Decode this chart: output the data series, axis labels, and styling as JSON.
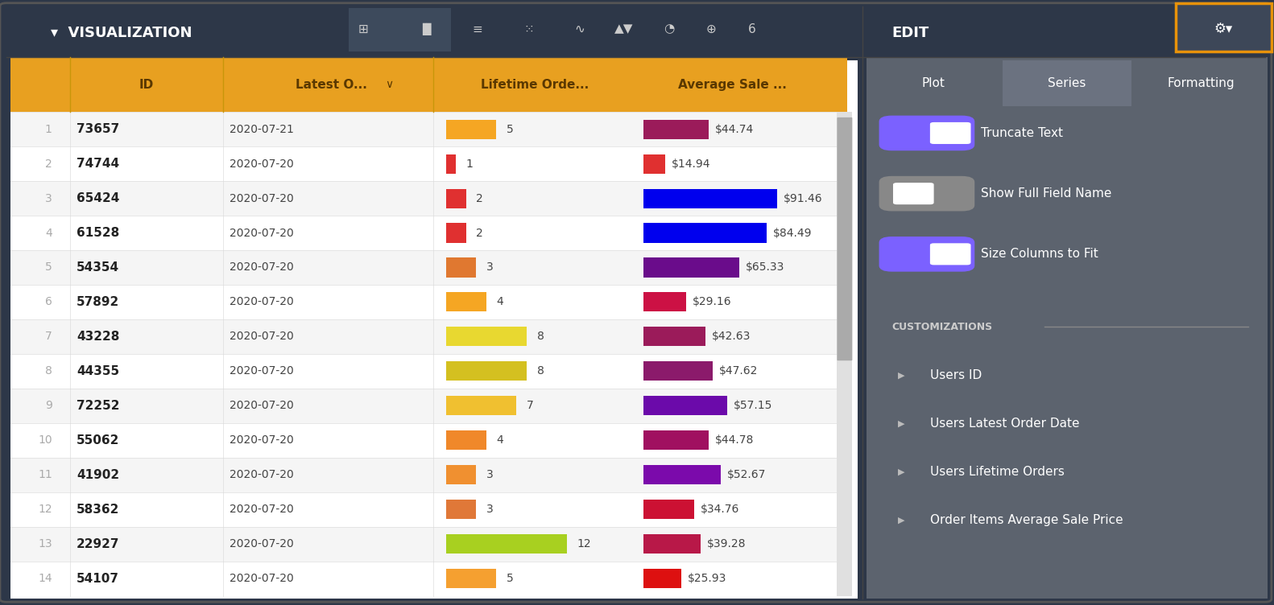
{
  "rows": [
    {
      "num": 1,
      "id": "73657",
      "date": "2020-07-21",
      "lifetime": 5,
      "lifetime_color": "#F5A623",
      "avg_sale": 44.74,
      "avg_color": "#9B1B5A"
    },
    {
      "num": 2,
      "id": "74744",
      "date": "2020-07-20",
      "lifetime": 1,
      "lifetime_color": "#E03030",
      "avg_sale": 14.94,
      "avg_color": "#E03030"
    },
    {
      "num": 3,
      "id": "65424",
      "date": "2020-07-20",
      "lifetime": 2,
      "lifetime_color": "#E03030",
      "avg_sale": 91.46,
      "avg_color": "#0000EE"
    },
    {
      "num": 4,
      "id": "61528",
      "date": "2020-07-20",
      "lifetime": 2,
      "lifetime_color": "#E03030",
      "avg_sale": 84.49,
      "avg_color": "#0000EE"
    },
    {
      "num": 5,
      "id": "54354",
      "date": "2020-07-20",
      "lifetime": 3,
      "lifetime_color": "#E07830",
      "avg_sale": 65.33,
      "avg_color": "#6A0C8B"
    },
    {
      "num": 6,
      "id": "57892",
      "date": "2020-07-20",
      "lifetime": 4,
      "lifetime_color": "#F5A623",
      "avg_sale": 29.16,
      "avg_color": "#CC1144"
    },
    {
      "num": 7,
      "id": "43228",
      "date": "2020-07-20",
      "lifetime": 8,
      "lifetime_color": "#E8D830",
      "avg_sale": 42.63,
      "avg_color": "#9B1B5A"
    },
    {
      "num": 8,
      "id": "44355",
      "date": "2020-07-20",
      "lifetime": 8,
      "lifetime_color": "#D4C020",
      "avg_sale": 47.62,
      "avg_color": "#8B1A6B"
    },
    {
      "num": 9,
      "id": "72252",
      "date": "2020-07-20",
      "lifetime": 7,
      "lifetime_color": "#F0C030",
      "avg_sale": 57.15,
      "avg_color": "#6B0AAA"
    },
    {
      "num": 10,
      "id": "55062",
      "date": "2020-07-20",
      "lifetime": 4,
      "lifetime_color": "#F0882A",
      "avg_sale": 44.78,
      "avg_color": "#A01060"
    },
    {
      "num": 11,
      "id": "41902",
      "date": "2020-07-20",
      "lifetime": 3,
      "lifetime_color": "#F09030",
      "avg_sale": 52.67,
      "avg_color": "#7B0AAB"
    },
    {
      "num": 12,
      "id": "58362",
      "date": "2020-07-20",
      "lifetime": 3,
      "lifetime_color": "#E07838",
      "avg_sale": 34.76,
      "avg_color": "#CC1133"
    },
    {
      "num": 13,
      "id": "22927",
      "date": "2020-07-20",
      "lifetime": 12,
      "lifetime_color": "#A8D020",
      "avg_sale": 39.28,
      "avg_color": "#B81848"
    },
    {
      "num": 14,
      "id": "54107",
      "date": "2020-07-20",
      "lifetime": 5,
      "lifetime_color": "#F5A030",
      "avg_sale": 25.93,
      "avg_color": "#DD1010"
    }
  ],
  "header_bg": "#E8A020",
  "header_text": "#5A3800",
  "row_bg_odd": "#F5F5F5",
  "row_bg_even": "#FFFFFF",
  "row_num_color": "#AAAAAA",
  "id_color": "#222222",
  "date_color": "#444444",
  "top_bar_bg": "#2D3748",
  "right_panel_bg": "#555C6A",
  "edit_panel_bg": "#6B7280",
  "border_color": "#CCCCCC",
  "viz_title": "VISUALIZATION",
  "edit_title": "EDIT",
  "tab_active": "Series",
  "tabs": [
    "Plot",
    "Series",
    "Formatting"
  ],
  "toggle1_label": "Truncate Text",
  "toggle1_on": true,
  "toggle2_label": "Show Full Field Name",
  "toggle2_on": false,
  "toggle3_label": "Size Columns to Fit",
  "toggle3_on": true,
  "customizations_title": "CUSTOMIZATIONS",
  "custom_items": [
    "Users ID",
    "Users Latest Order Date",
    "Users Lifetime Orders",
    "Order Items Average Sale Price"
  ],
  "col_headers": [
    "ID",
    "Latest O...",
    "Lifetime Orde...",
    "Average Sale ..."
  ],
  "max_lifetime": 12,
  "max_avg": 91.46
}
